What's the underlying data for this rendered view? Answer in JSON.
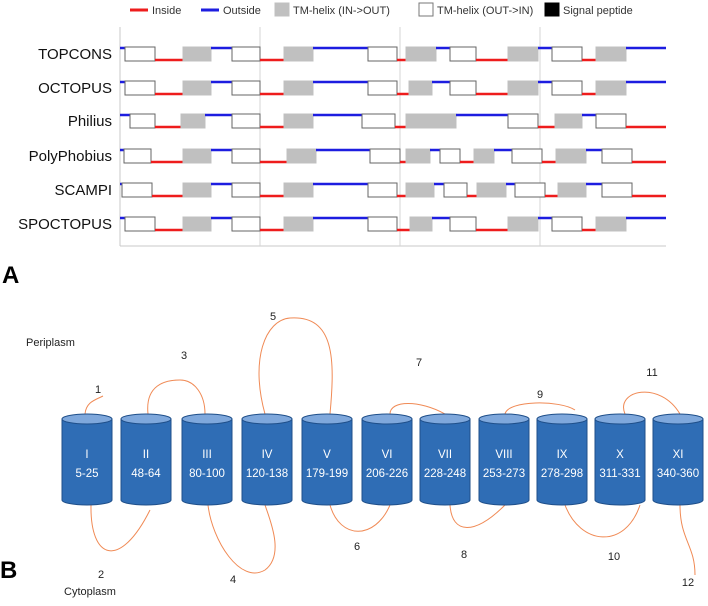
{
  "panel_a": {
    "label": "A",
    "legend": [
      {
        "key": "inside",
        "label": "Inside",
        "kind": "line",
        "color": "#ee1c1c"
      },
      {
        "key": "outside",
        "label": "Outside",
        "kind": "line",
        "color": "#1d1de0"
      },
      {
        "key": "tm_in_out",
        "label": "TM-helix (IN->OUT)",
        "kind": "box",
        "color": "#c0c0c0"
      },
      {
        "key": "tm_out_in",
        "label": "TM-helix (OUT->IN)",
        "kind": "box",
        "color": "#ffffff"
      },
      {
        "key": "signal",
        "label": "Signal peptide",
        "kind": "box",
        "color": "#000000"
      }
    ],
    "tracks": [
      {
        "name": "TOPCONS",
        "start": "outside",
        "helices": [
          [
            125,
            155
          ],
          [
            183,
            211
          ],
          [
            232,
            260
          ],
          [
            284,
            313
          ],
          [
            368,
            397
          ],
          [
            406,
            436
          ],
          [
            450,
            476
          ],
          [
            508,
            538
          ],
          [
            552,
            582
          ],
          [
            596,
            626
          ]
        ]
      },
      {
        "name": "OCTOPUS",
        "start": "outside",
        "helices": [
          [
            125,
            155
          ],
          [
            183,
            211
          ],
          [
            232,
            260
          ],
          [
            284,
            313
          ],
          [
            368,
            397
          ],
          [
            409,
            432
          ],
          [
            450,
            476
          ],
          [
            508,
            538
          ],
          [
            552,
            582
          ],
          [
            596,
            626
          ]
        ]
      },
      {
        "name": "Philius",
        "start": "outside",
        "helices": [
          [
            130,
            155
          ],
          [
            181,
            205
          ],
          [
            232,
            260
          ],
          [
            284,
            313
          ],
          [
            362,
            395
          ],
          [
            406,
            456
          ],
          [
            508,
            538
          ],
          [
            555,
            582
          ],
          [
            596,
            626
          ]
        ]
      },
      {
        "name": "PolyPhobius",
        "start": "outside",
        "helices": [
          [
            124,
            151
          ],
          [
            183,
            211
          ],
          [
            232,
            260
          ],
          [
            287,
            316
          ],
          [
            370,
            400
          ],
          [
            406,
            430
          ],
          [
            440,
            460
          ],
          [
            474,
            494
          ],
          [
            512,
            542
          ],
          [
            556,
            586
          ],
          [
            602,
            632
          ]
        ]
      },
      {
        "name": "SCAMPI",
        "start": "outside",
        "helices": [
          [
            122,
            152
          ],
          [
            183,
            211
          ],
          [
            232,
            260
          ],
          [
            284,
            313
          ],
          [
            368,
            397
          ],
          [
            406,
            434
          ],
          [
            444,
            467
          ],
          [
            477,
            506
          ],
          [
            515,
            545
          ],
          [
            558,
            586
          ],
          [
            602,
            632
          ]
        ]
      },
      {
        "name": "SPOCTOPUS",
        "start": "outside",
        "helices": [
          [
            125,
            155
          ],
          [
            183,
            211
          ],
          [
            232,
            260
          ],
          [
            284,
            313
          ],
          [
            368,
            397
          ],
          [
            410,
            432
          ],
          [
            450,
            476
          ],
          [
            508,
            538
          ],
          [
            552,
            582
          ],
          [
            596,
            626
          ]
        ]
      }
    ]
  },
  "panel_b": {
    "label": "B",
    "periplasm_label": "Periplasm",
    "cytoplasm_label": "Cytoplasm",
    "cylinder_color": "#2f6db5",
    "loop_color": "#f08a55",
    "helices": [
      {
        "numeral": "I",
        "range": "5-25"
      },
      {
        "numeral": "II",
        "range": "48-64"
      },
      {
        "numeral": "III",
        "range": "80-100"
      },
      {
        "numeral": "IV",
        "range": "120-138"
      },
      {
        "numeral": "V",
        "range": "179-199"
      },
      {
        "numeral": "VI",
        "range": "206-226"
      },
      {
        "numeral": "VII",
        "range": "228-248"
      },
      {
        "numeral": "VIII",
        "range": "253-273"
      },
      {
        "numeral": "IX",
        "range": "278-298"
      },
      {
        "numeral": "X",
        "range": "311-331"
      },
      {
        "numeral": "XI",
        "range": "340-360"
      }
    ],
    "loops": [
      "1",
      "2",
      "3",
      "4",
      "5",
      "6",
      "7",
      "8",
      "9",
      "10",
      "11",
      "12"
    ]
  }
}
